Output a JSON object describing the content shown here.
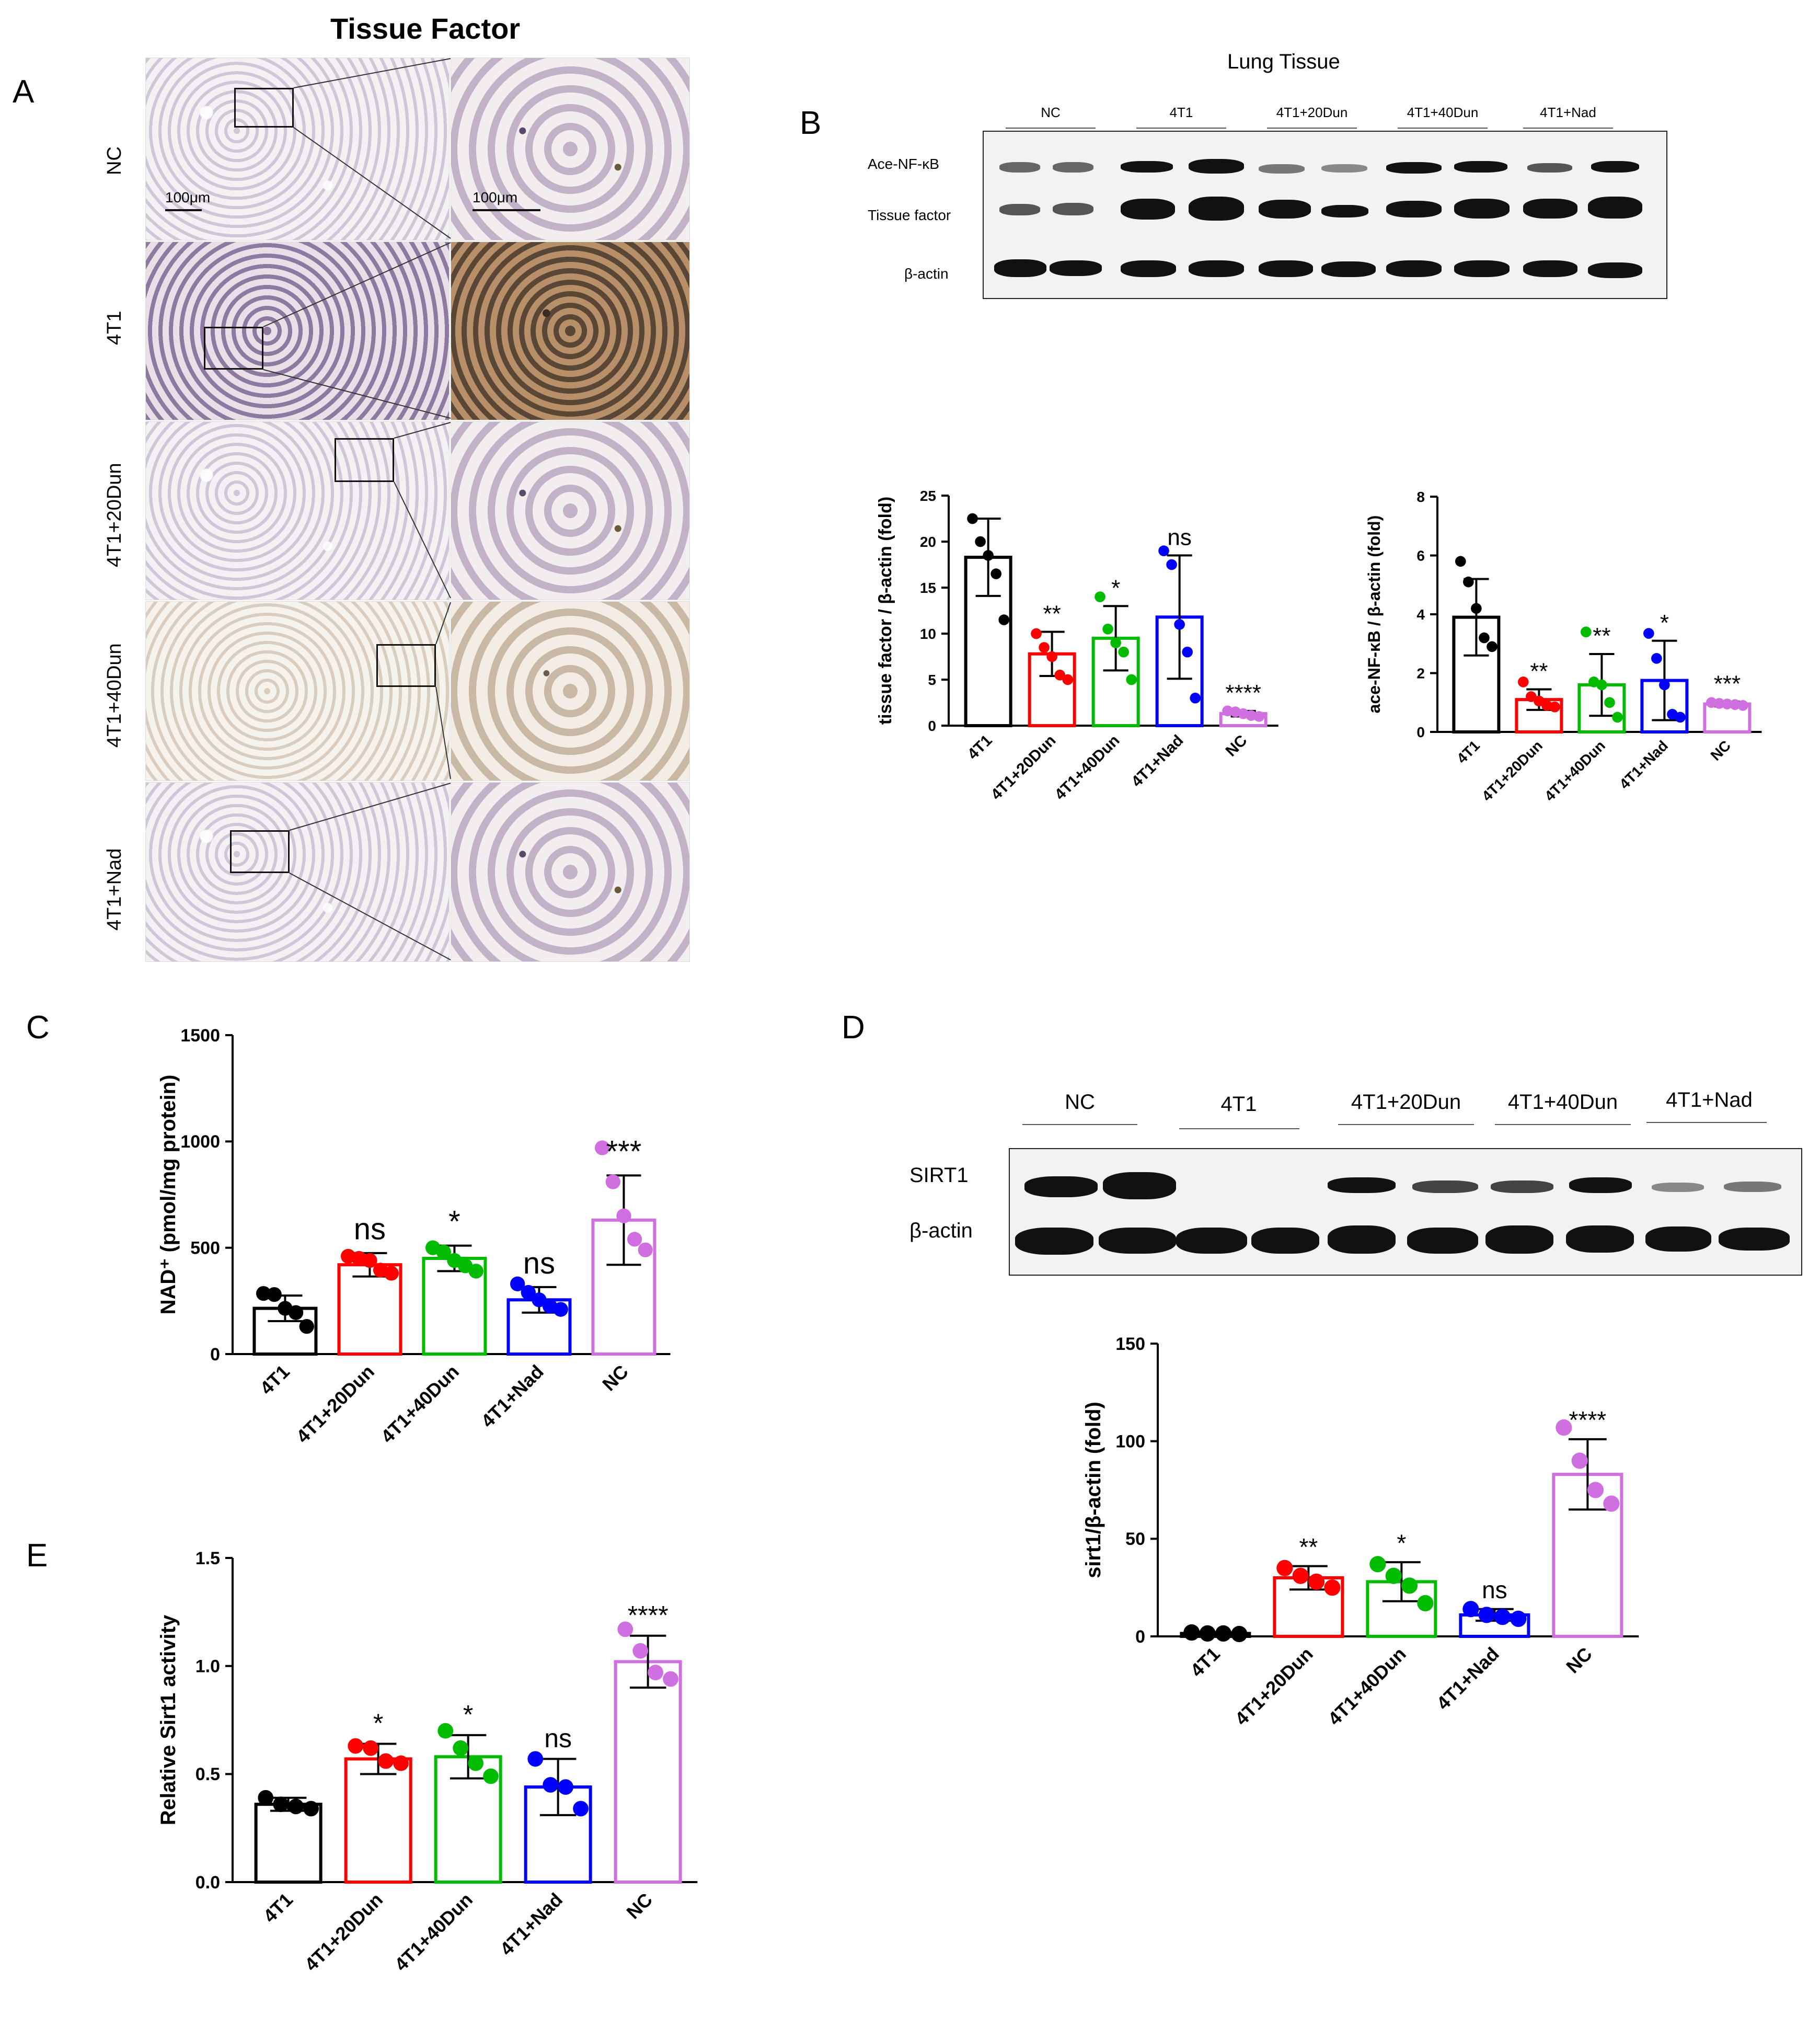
{
  "panel_letters": [
    "A",
    "B",
    "C",
    "D",
    "E"
  ],
  "panel_a": {
    "title": "Tissue Factor",
    "rows": [
      "NC",
      "4T1",
      "4T1+20Dun",
      "4T1+40Dun",
      "4T1+Nad"
    ],
    "scale_low": "100μm",
    "scale_high": "100μm"
  },
  "panel_b_blot": {
    "title": "Lung Tissue",
    "lanes": [
      "NC",
      "4T1",
      "4T1+20Dun",
      "4T1+40Dun",
      "4T1+Nad"
    ],
    "rows": [
      "Ace-NF-κB",
      "Tissue factor",
      "β-actin"
    ]
  },
  "panel_d_blot": {
    "lanes": [
      "NC",
      "4T1",
      "4T1+20Dun",
      "4T1+40Dun",
      "4T1+Nad"
    ],
    "rows": [
      "SIRT1",
      "β-actin"
    ]
  },
  "colors": {
    "4T1": "#000000",
    "4T1+20Dun": "#ff0000",
    "4T1+40Dun": "#00bb00",
    "4T1+Nad": "#0000ff",
    "NC": "#d070e0"
  },
  "chart_data": [
    {
      "id": "tf",
      "type": "bar",
      "categories": [
        "4T1",
        "4T1+20Dun",
        "4T1+40Dun",
        "4T1+Nad",
        "NC"
      ],
      "values": [
        18.3,
        7.8,
        9.5,
        11.8,
        1.3
      ],
      "errors": [
        4.2,
        2.4,
        3.5,
        6.7,
        0.3
      ],
      "points": [
        [
          22.5,
          20,
          18.5,
          16.5,
          11.5
        ],
        [
          10,
          8.5,
          7.5,
          5.5,
          5
        ],
        [
          14,
          10.5,
          9,
          8,
          5
        ],
        [
          19,
          17.5,
          11,
          8,
          3
        ],
        [
          1.6,
          1.5,
          1.3,
          1.1,
          1
        ]
      ],
      "significance": [
        "",
        "**",
        "*",
        "ns",
        "****"
      ],
      "ylabel": "tissue factor / β-actin (fold)",
      "ylim": [
        0,
        25
      ],
      "yticks": [
        0,
        5,
        10,
        15,
        20,
        25
      ]
    },
    {
      "id": "nfkb",
      "type": "bar",
      "categories": [
        "4T1",
        "4T1+20Dun",
        "4T1+40Dun",
        "4T1+Nad",
        "NC"
      ],
      "values": [
        3.9,
        1.1,
        1.6,
        1.75,
        0.95
      ],
      "errors": [
        1.3,
        0.35,
        1.05,
        1.35,
        0.08
      ],
      "points": [
        [
          5.8,
          5.1,
          4.2,
          3.2,
          2.9
        ],
        [
          1.7,
          1.2,
          1.05,
          0.9,
          0.85
        ],
        [
          3.4,
          1.7,
          1.6,
          1.0,
          0.5
        ],
        [
          3.35,
          2.5,
          1.6,
          0.6,
          0.5
        ],
        [
          1.0,
          0.97,
          0.95,
          0.93,
          0.9
        ]
      ],
      "significance": [
        "",
        "**",
        "**",
        "*",
        "***"
      ],
      "ylabel": "ace-NF-κB / β-actin (fold)",
      "ylim": [
        0,
        8
      ],
      "yticks": [
        0,
        2,
        4,
        6,
        8
      ]
    },
    {
      "id": "nad",
      "type": "bar",
      "categories": [
        "4T1",
        "4T1+20Dun",
        "4T1+40Dun",
        "4T1+Nad",
        "NC"
      ],
      "values": [
        215,
        420,
        450,
        255,
        630
      ],
      "errors": [
        60,
        55,
        60,
        60,
        210
      ],
      "points": [
        [
          285,
          280,
          215,
          195,
          130
        ],
        [
          460,
          450,
          440,
          395,
          380
        ],
        [
          500,
          480,
          440,
          415,
          390
        ],
        [
          330,
          290,
          255,
          225,
          210
        ],
        [
          970,
          810,
          650,
          540,
          490
        ]
      ],
      "significance": [
        "",
        "ns",
        "*",
        "ns",
        "***"
      ],
      "ylabel": "NAD⁺ (pmol/mg protein)",
      "ylim": [
        0,
        1500
      ],
      "yticks": [
        0,
        500,
        1000,
        1500
      ]
    },
    {
      "id": "sirt1",
      "type": "bar",
      "categories": [
        "4T1",
        "4T1+20Dun",
        "4T1+40Dun",
        "4T1+Nad",
        "NC"
      ],
      "values": [
        1.5,
        30,
        28,
        11,
        83
      ],
      "errors": [
        0.5,
        6,
        10,
        3,
        18
      ],
      "points": [
        [
          2,
          1.5,
          1.5,
          1.2
        ],
        [
          35,
          31,
          28,
          25
        ],
        [
          37,
          31,
          26,
          17
        ],
        [
          14,
          11,
          10,
          9
        ],
        [
          107,
          90,
          75,
          68
        ]
      ],
      "significance": [
        "",
        "**",
        "*",
        "ns",
        "****"
      ],
      "ylabel": "sirt1/β-actin (fold)",
      "ylim": [
        0,
        150
      ],
      "yticks": [
        0,
        50,
        100,
        150
      ]
    },
    {
      "id": "sirtact",
      "type": "bar",
      "categories": [
        "4T1",
        "4T1+20Dun",
        "4T1+40Dun",
        "4T1+Nad",
        "NC"
      ],
      "values": [
        0.36,
        0.57,
        0.58,
        0.44,
        1.02
      ],
      "errors": [
        0.03,
        0.07,
        0.1,
        0.13,
        0.12
      ],
      "points": [
        [
          0.39,
          0.36,
          0.35,
          0.34
        ],
        [
          0.63,
          0.62,
          0.56,
          0.55
        ],
        [
          0.7,
          0.62,
          0.55,
          0.49
        ],
        [
          0.57,
          0.45,
          0.44,
          0.34
        ],
        [
          1.17,
          1.07,
          0.97,
          0.94
        ]
      ],
      "significance": [
        "",
        "*",
        "*",
        "ns",
        "****"
      ],
      "ylabel": "Relative Sirt1 activity",
      "ylim": [
        0,
        1.5
      ],
      "yticks": [
        0,
        0.5,
        1.0,
        1.5
      ]
    }
  ]
}
